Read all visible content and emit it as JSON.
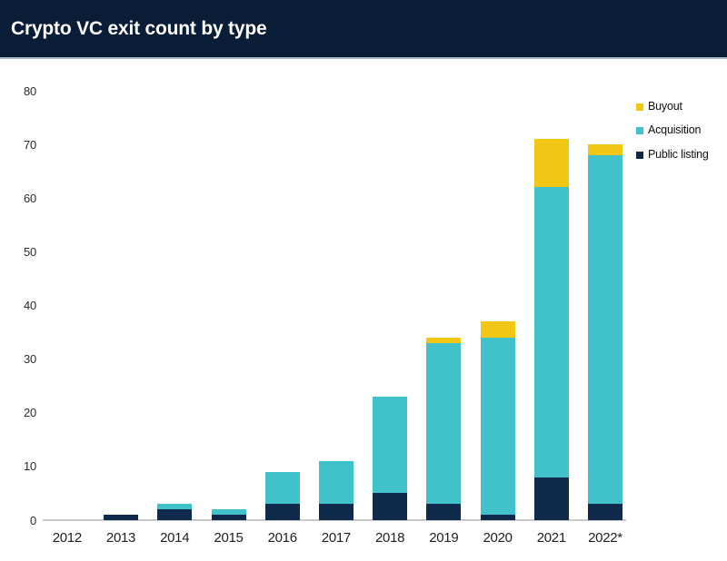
{
  "header": {
    "title": "Crypto VC exit count by type"
  },
  "colors": {
    "header_background": "#0a1d37",
    "header_separator": "#a9b7c7",
    "title_text": "#ffffff",
    "axis_line": "#c9c9c9",
    "axis_text": "#2b2b2b",
    "buyout": "#f2c614",
    "acquisition": "#41c1c9",
    "public_listing": "#0f2a4a"
  },
  "chart_data": {
    "type": "bar",
    "stacked": true,
    "title": "Crypto VC exit count by type",
    "xlabel": "",
    "ylabel": "",
    "grid": false,
    "legend_position": "top-right",
    "ylim": [
      0,
      80
    ],
    "y_ticks": [
      0,
      10,
      20,
      30,
      40,
      50,
      60,
      70,
      80
    ],
    "categories": [
      "2012",
      "2013",
      "2014",
      "2015",
      "2016",
      "2017",
      "2018",
      "2019",
      "2020",
      "2021",
      "2022*"
    ],
    "series": [
      {
        "name": "Public listing",
        "color": "#0f2a4a",
        "values": [
          0,
          1,
          2,
          1,
          3,
          3,
          5,
          3,
          1,
          8,
          3
        ]
      },
      {
        "name": "Acquisition",
        "color": "#41c1c9",
        "values": [
          0,
          0,
          1,
          1,
          6,
          8,
          18,
          30,
          33,
          54,
          65
        ]
      },
      {
        "name": "Buyout",
        "color": "#f2c614",
        "values": [
          0,
          0,
          0,
          0,
          0,
          0,
          0,
          1,
          3,
          9,
          2
        ]
      }
    ],
    "totals": [
      0,
      1,
      3,
      2,
      9,
      11,
      23,
      34,
      37,
      71,
      70
    ],
    "legend_order": [
      "Buyout",
      "Acquisition",
      "Public listing"
    ]
  }
}
